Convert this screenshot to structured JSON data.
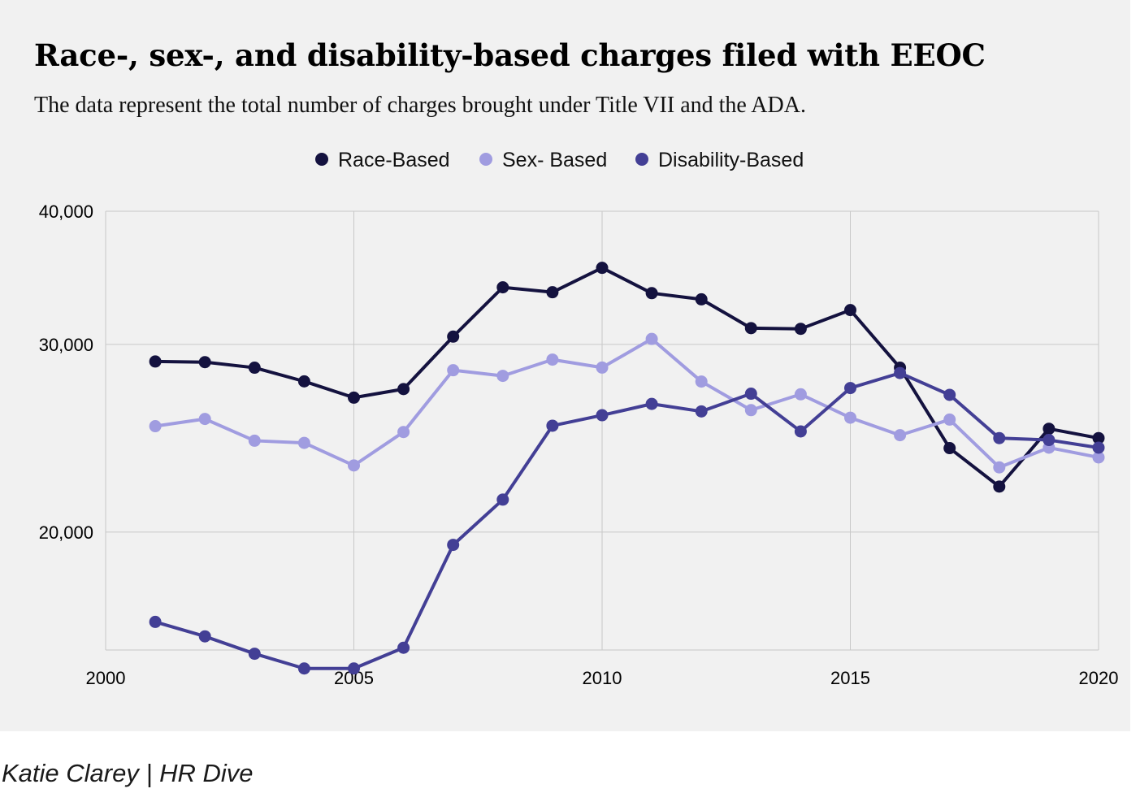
{
  "page": {
    "background": "#ffffff",
    "card_background": "#f1f1f1",
    "credit": "Katie Clarey | HR Dive"
  },
  "chart_data": {
    "type": "line",
    "title": "Race-, sex-, and disability-based charges filed with EEOC",
    "subtitle": "The data represent the total number of charges brought under Title VII and the ADA.",
    "xlabel": "",
    "ylabel": "",
    "x": [
      2001,
      2002,
      2003,
      2004,
      2005,
      2006,
      2007,
      2008,
      2009,
      2010,
      2011,
      2012,
      2013,
      2014,
      2015,
      2016,
      2017,
      2018,
      2019,
      2020
    ],
    "series": [
      {
        "name": "Race-Based",
        "color": "#14123f",
        "values": [
          28912,
          28872,
          28526,
          27696,
          26740,
          27238,
          30510,
          33937,
          33579,
          35395,
          33512,
          33068,
          31073,
          31027,
          32309,
          28528,
          23976,
          22064,
          25000,
          24500
        ]
      },
      {
        "name": "Sex- Based",
        "color": "#a09ce0",
        "values": [
          25140,
          25536,
          24362,
          24249,
          23094,
          24826,
          28372,
          28028,
          29029,
          28534,
          30356,
          27687,
          26027,
          26934,
          25605,
          24655,
          25500,
          23000,
          24000,
          23500
        ]
      },
      {
        "name": "Disability-Based",
        "color": "#433f95",
        "values": [
          16470,
          15964,
          15376,
          14893,
          14893,
          15575,
          19453,
          21451,
          25165,
          25742,
          26379,
          25957,
          26968,
          24858,
          27300,
          28200,
          26900,
          24500,
          24400,
          24000
        ]
      }
    ],
    "xlim": [
      2000,
      2020
    ],
    "ylim": [
      15500,
      40000
    ],
    "y_scale": "log",
    "x_ticks": [
      "2000",
      "2005",
      "2010",
      "2015",
      "2020"
    ],
    "y_ticks": [
      "20,000",
      "30,000",
      "40,000"
    ],
    "grid": true,
    "legend_position": "top-center"
  }
}
